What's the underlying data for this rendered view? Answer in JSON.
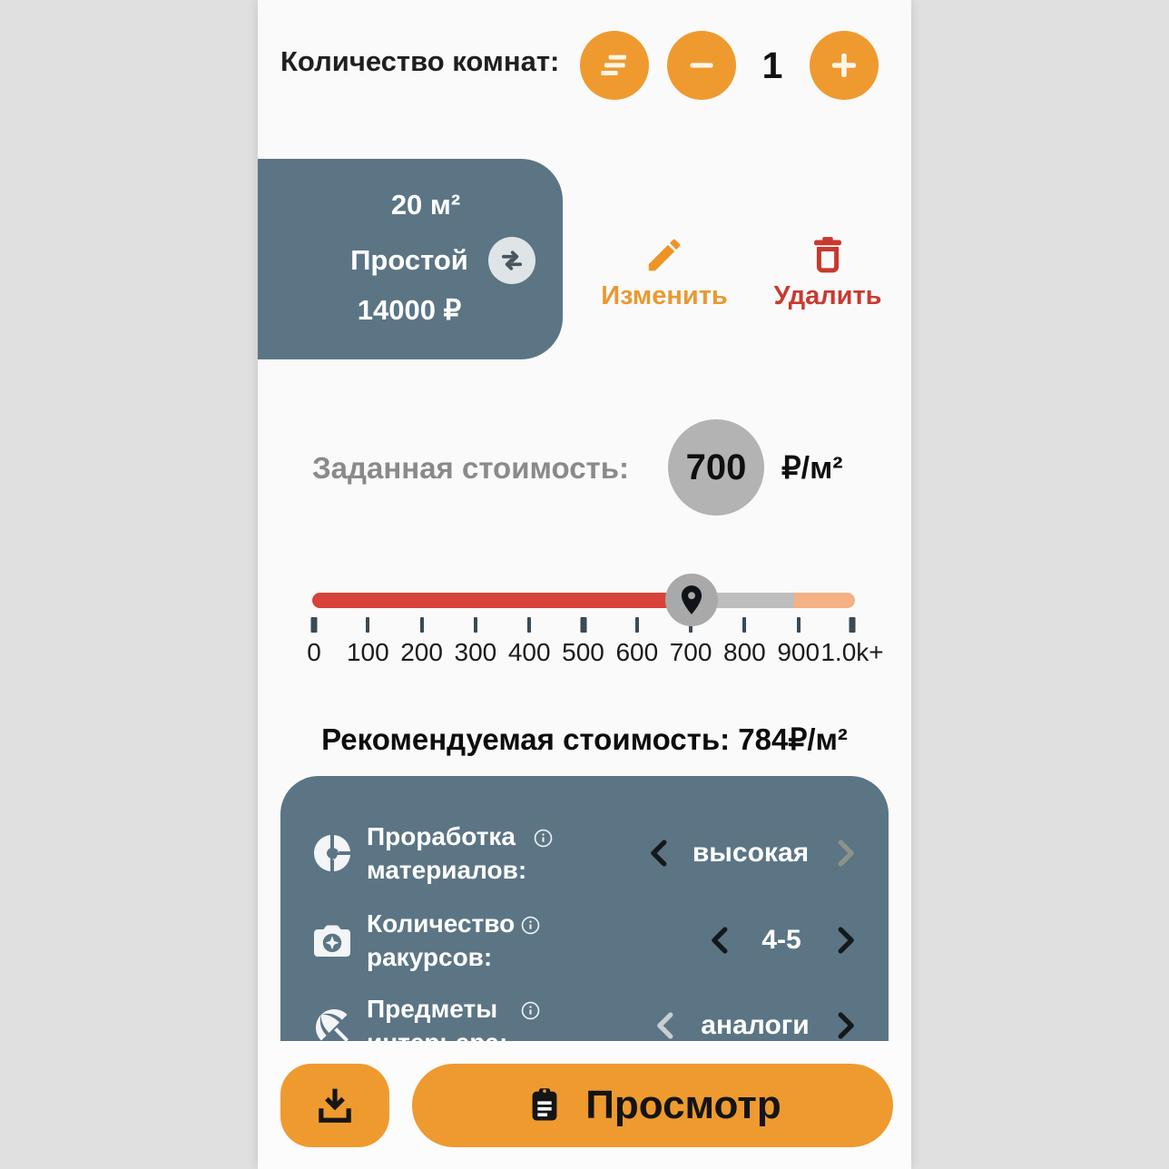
{
  "header": {
    "label": "Количество комнат:",
    "count": "1"
  },
  "room_card": {
    "area": "20 м²",
    "type": "Простой",
    "price": "14000 ₽"
  },
  "room_actions": {
    "edit_label": "Изменить",
    "delete_label": "Удалить"
  },
  "set_cost": {
    "label": "Заданная стоимость:",
    "value": "700",
    "unit": "₽/м²"
  },
  "slider": {
    "value": 700,
    "min": 0,
    "max": "1.0k+",
    "ticks": [
      "0",
      "100",
      "200",
      "300",
      "400",
      "500",
      "600",
      "700",
      "800",
      "900",
      "1.0k+"
    ]
  },
  "recommended": {
    "label": "Рекомендуемая стоимость: ",
    "value": "784₽/м²"
  },
  "options": {
    "rows": [
      {
        "icon": "donut-chart-icon",
        "line1": "Проработка",
        "line2": "материалов:",
        "value": "высокая",
        "prev_enabled": true,
        "next_enabled": false
      },
      {
        "icon": "camera-icon",
        "line1": "Количество",
        "line2": "ракурсов:",
        "value": "4-5",
        "prev_enabled": true,
        "next_enabled": true
      },
      {
        "icon": "umbrella-icon",
        "line1": "Предметы",
        "line2": "интерьера:",
        "value": "аналоги",
        "prev_enabled": false,
        "next_enabled": true
      }
    ]
  },
  "footer": {
    "preview_label": "Просмотр"
  },
  "colors": {
    "accent_orange": "#ef9a2f",
    "card_slate": "#5b7585",
    "edit_orange": "#e89a33",
    "delete_red": "#c93a2f",
    "slider_red": "#d8423a",
    "slider_gray": "#bdbdbd",
    "slider_peach": "#f3b184",
    "set_cost_circle": "#b3b3b3"
  }
}
